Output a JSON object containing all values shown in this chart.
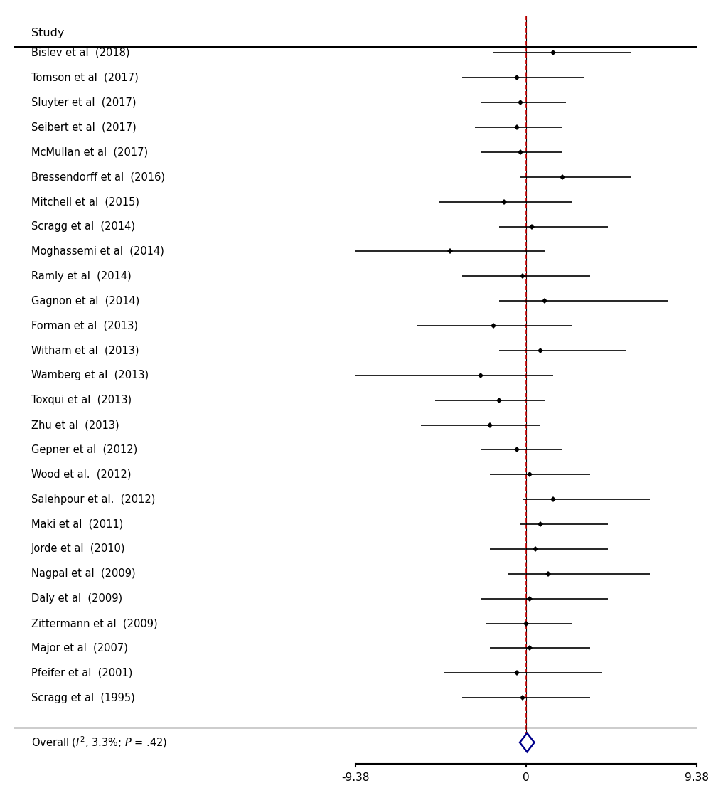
{
  "studies": [
    {
      "label": "Bislev et al  (2018)",
      "mean": 1.5,
      "ci_low": -1.8,
      "ci_high": 5.8
    },
    {
      "label": "Tomson et al  (2017)",
      "mean": -0.5,
      "ci_low": -3.5,
      "ci_high": 3.2
    },
    {
      "label": "Sluyter et al  (2017)",
      "mean": -0.3,
      "ci_low": -2.5,
      "ci_high": 2.2
    },
    {
      "label": "Seibert et al  (2017)",
      "mean": -0.5,
      "ci_low": -2.8,
      "ci_high": 2.0
    },
    {
      "label": "McMullan et al  (2017)",
      "mean": -0.3,
      "ci_low": -2.5,
      "ci_high": 2.0
    },
    {
      "label": "Bressendorff et al  (2016)",
      "mean": 2.0,
      "ci_low": -0.3,
      "ci_high": 5.8
    },
    {
      "label": "Mitchell et al  (2015)",
      "mean": -1.2,
      "ci_low": -4.8,
      "ci_high": 2.5
    },
    {
      "label": "Scragg et al  (2014)",
      "mean": 0.3,
      "ci_low": -1.5,
      "ci_high": 4.5
    },
    {
      "label": "Moghassemi et al  (2014)",
      "mean": -4.2,
      "ci_low": -9.38,
      "ci_high": 1.0
    },
    {
      "label": "Ramly et al  (2014)",
      "mean": -0.2,
      "ci_low": -3.5,
      "ci_high": 3.5
    },
    {
      "label": "Gagnon et al  (2014)",
      "mean": 1.0,
      "ci_low": -1.5,
      "ci_high": 7.8
    },
    {
      "label": "Forman et al  (2013)",
      "mean": -1.8,
      "ci_low": -6.0,
      "ci_high": 2.5
    },
    {
      "label": "Witham et al  (2013)",
      "mean": 0.8,
      "ci_low": -1.5,
      "ci_high": 5.5
    },
    {
      "label": "Wamberg et al  (2013)",
      "mean": -2.5,
      "ci_low": -9.38,
      "ci_high": 1.5
    },
    {
      "label": "Toxqui et al  (2013)",
      "mean": -1.5,
      "ci_low": -5.0,
      "ci_high": 1.0
    },
    {
      "label": "Zhu et al  (2013)",
      "mean": -2.0,
      "ci_low": -5.8,
      "ci_high": 0.8
    },
    {
      "label": "Gepner et al  (2012)",
      "mean": -0.5,
      "ci_low": -2.5,
      "ci_high": 2.0
    },
    {
      "label": "Wood et al.  (2012)",
      "mean": 0.2,
      "ci_low": -2.0,
      "ci_high": 3.5
    },
    {
      "label": "Salehpour et al.  (2012)",
      "mean": 1.5,
      "ci_low": -0.2,
      "ci_high": 6.8
    },
    {
      "label": "Maki et al  (2011)",
      "mean": 0.8,
      "ci_low": -0.3,
      "ci_high": 4.5
    },
    {
      "label": "Jorde et al  (2010)",
      "mean": 0.5,
      "ci_low": -2.0,
      "ci_high": 4.5
    },
    {
      "label": "Nagpal et al  (2009)",
      "mean": 1.2,
      "ci_low": -1.0,
      "ci_high": 6.8
    },
    {
      "label": "Daly et al  (2009)",
      "mean": 0.2,
      "ci_low": -2.5,
      "ci_high": 4.5
    },
    {
      "label": "Zittermann et al  (2009)",
      "mean": 0.0,
      "ci_low": -2.2,
      "ci_high": 2.5
    },
    {
      "label": "Major et al  (2007)",
      "mean": 0.2,
      "ci_low": -2.0,
      "ci_high": 3.5
    },
    {
      "label": "Pfeifer et al  (2001)",
      "mean": -0.5,
      "ci_low": -4.5,
      "ci_high": 4.2
    },
    {
      "label": "Scragg et al  (1995)",
      "mean": -0.2,
      "ci_low": -3.5,
      "ci_high": 3.5
    }
  ],
  "overall": {
    "label": "Overall (², 3.3%;  = .42)",
    "mean": 0.05,
    "ci_low": -0.35,
    "ci_high": 0.45
  },
  "xlim": [
    -9.38,
    9.38
  ],
  "xticks": [
    -9.38,
    0,
    9.38
  ],
  "xticklabels": [
    "-9.38",
    "0",
    "9.38"
  ],
  "header": "Study",
  "background_color": "#ffffff",
  "line_color": "#000000",
  "dashed_color": "#cc0000",
  "diamond_edge_color": "#00008b",
  "diamond_face_color": "#ffffff"
}
